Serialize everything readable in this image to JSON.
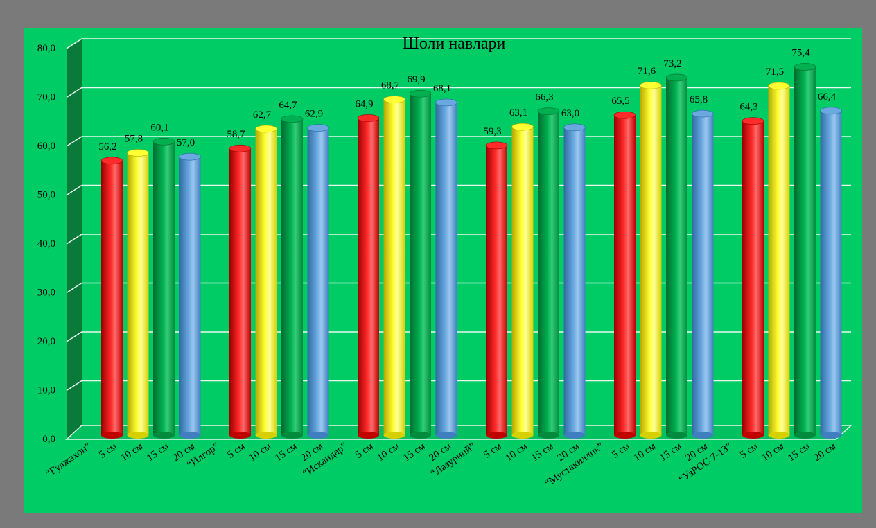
{
  "colors": {
    "frame": "#7a7a7a",
    "plot_background": "#00cc66",
    "gridline": "#e8f8ee",
    "wall": "#0a7a3a",
    "bar_5cm": "#ff0000",
    "bar_10cm": "#ffff00",
    "bar_15cm": "#00a850",
    "bar_20cm": "#5b9bd5"
  },
  "chart_data": {
    "type": "bar",
    "title": "Шоли навлари",
    "xlabel": "",
    "ylabel": "",
    "ylim": [
      0,
      80
    ],
    "yticks": [
      "0,0",
      "10,0",
      "20,0",
      "30,0",
      "40,0",
      "50,0",
      "60,0",
      "70,0",
      "80,0"
    ],
    "grid": true,
    "legend": "none",
    "groups": [
      {
        "label": "“Гулжахон”",
        "depths": [
          "5 см",
          "10 см",
          "15 см",
          "20 см"
        ],
        "values": [
          56.2,
          57.8,
          60.1,
          57.0
        ],
        "labels": [
          "56,2",
          "57,8",
          "60,1",
          "57,0"
        ]
      },
      {
        "label": "“Илгор”",
        "depths": [
          "5 см",
          "10 см",
          "15 см",
          "20 см"
        ],
        "values": [
          58.7,
          62.7,
          64.7,
          62.9
        ],
        "labels": [
          "58,7",
          "62,7",
          "64,7",
          "62,9"
        ]
      },
      {
        "label": "“Искандар”",
        "depths": [
          "5 см",
          "10 см",
          "15 см",
          "20 см"
        ],
        "values": [
          64.9,
          68.7,
          69.9,
          68.1
        ],
        "labels": [
          "64,9",
          "68,7",
          "69,9",
          "68,1"
        ]
      },
      {
        "label": "“Лазурний”",
        "depths": [
          "5 см",
          "10 см",
          "15 см",
          "20 см"
        ],
        "values": [
          59.3,
          63.1,
          66.3,
          63.0
        ],
        "labels": [
          "59,3",
          "63,1",
          "66,3",
          "63,0"
        ]
      },
      {
        "label": "“Мустакиллик”",
        "depths": [
          "5 см",
          "10 см",
          "15 см",
          "20 см"
        ],
        "values": [
          65.5,
          71.6,
          73.2,
          65.8
        ],
        "labels": [
          "65,5",
          "71,6",
          "73,2",
          "65,8"
        ]
      },
      {
        "label": "“УзРОС 7-13”",
        "depths": [
          "5 см",
          "10 см",
          "15 см",
          "20 см"
        ],
        "values": [
          64.3,
          71.5,
          75.4,
          66.4
        ],
        "labels": [
          "64,3",
          "71,5",
          "75,4",
          "66,4"
        ]
      }
    ]
  }
}
